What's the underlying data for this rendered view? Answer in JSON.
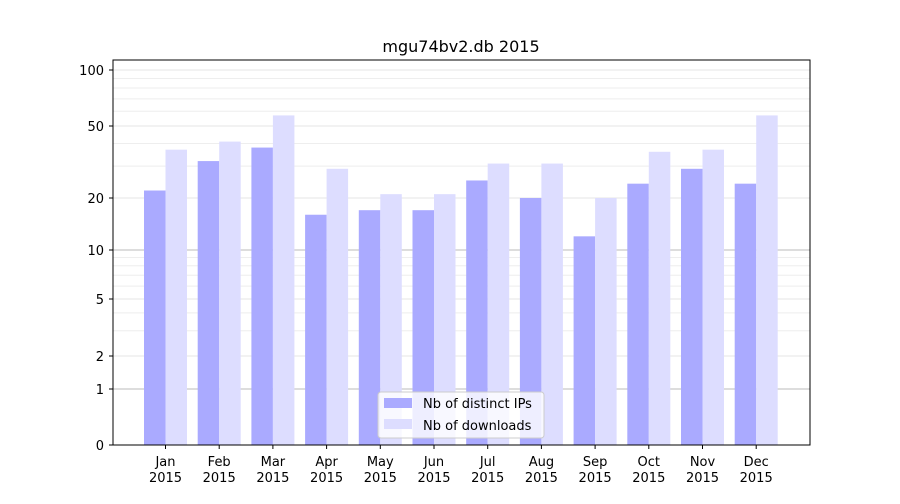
{
  "chart_data": {
    "type": "bar",
    "title": "mgu74bv2.db 2015",
    "xlabel": "",
    "ylabel": "",
    "yscale": "symlog",
    "ylim": [
      0,
      110
    ],
    "yticks": [
      0,
      1,
      2,
      5,
      10,
      20,
      50,
      100
    ],
    "ytick_labels": [
      "0",
      "1",
      "2",
      "5",
      "10",
      "20",
      "50",
      "100"
    ],
    "categories": [
      "Jan\n2015",
      "Feb\n2015",
      "Mar\n2015",
      "Apr\n2015",
      "May\n2015",
      "Jun\n2015",
      "Jul\n2015",
      "Aug\n2015",
      "Sep\n2015",
      "Oct\n2015",
      "Nov\n2015",
      "Dec\n2015"
    ],
    "grid": true,
    "legend_position": "bottom-center",
    "series": [
      {
        "name": "Nb of distinct IPs",
        "color": "#aaaaff",
        "values": [
          22,
          32,
          38,
          16,
          17,
          17,
          25,
          20,
          12,
          24,
          29,
          24
        ]
      },
      {
        "name": "Nb of downloads",
        "color": "#ddddff",
        "values": [
          37,
          41,
          57,
          29,
          21,
          21,
          31,
          31,
          20,
          36,
          37,
          57
        ]
      }
    ]
  }
}
